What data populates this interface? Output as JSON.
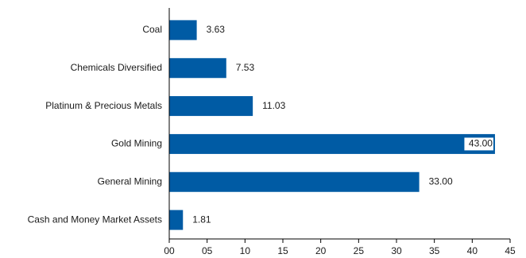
{
  "chart_data": {
    "type": "bar",
    "orientation": "horizontal",
    "categories": [
      "Coal",
      "Chemicals Diversified",
      "Platinum & Precious Metals",
      "Gold Mining",
      "General Mining",
      "Cash and Money Market Assets"
    ],
    "values": [
      3.63,
      7.53,
      11.03,
      43.0,
      33.0,
      1.81
    ],
    "value_labels": [
      "3.63",
      "7.53",
      "11.03",
      "43.00",
      "33.00",
      "1.81"
    ],
    "xlim": [
      0,
      45
    ],
    "x_ticks": [
      0,
      5,
      10,
      15,
      20,
      25,
      30,
      35,
      40,
      45
    ],
    "x_tick_labels": [
      "00",
      "05",
      "10",
      "15",
      "20",
      "25",
      "30",
      "35",
      "40",
      "45"
    ],
    "title": "",
    "xlabel": "",
    "ylabel": "",
    "grid": false,
    "legend": "none",
    "colors": {
      "bar": "#005BA4",
      "text": "#1a1a1a",
      "axis": "#000000",
      "inside_label_bg": "#ffffff"
    }
  }
}
